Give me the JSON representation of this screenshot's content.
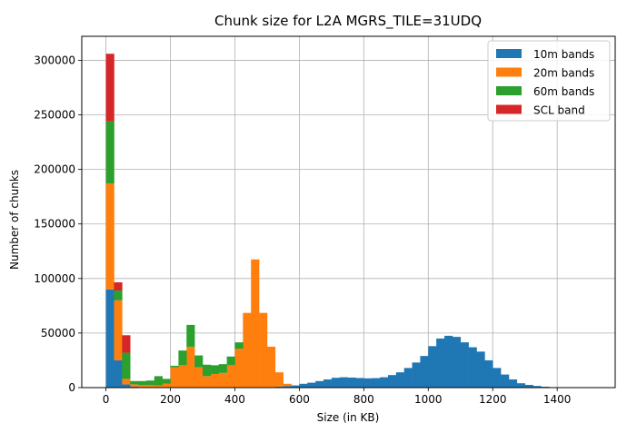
{
  "chart_data": {
    "type": "bar",
    "stacked": true,
    "histogram": true,
    "title": "Chunk size for L2A MGRS_TILE=31UDQ",
    "xlabel": "Size (in KB)",
    "ylabel": "Number of chunks",
    "xlim": [
      -75,
      1580
    ],
    "ylim": [
      0,
      322000
    ],
    "xticks": [
      0,
      200,
      400,
      600,
      800,
      1000,
      1200,
      1400
    ],
    "yticks": [
      0,
      50000,
      100000,
      150000,
      200000,
      250000,
      300000
    ],
    "grid": true,
    "legend_position": "top-right",
    "bin_width": 25,
    "bin_starts": [
      0,
      25,
      50,
      75,
      100,
      125,
      150,
      175,
      200,
      225,
      250,
      275,
      300,
      325,
      350,
      375,
      400,
      425,
      450,
      475,
      500,
      525,
      550,
      575,
      600,
      625,
      650,
      675,
      700,
      725,
      750,
      775,
      800,
      825,
      850,
      875,
      900,
      925,
      950,
      975,
      1000,
      1025,
      1050,
      1075,
      1100,
      1125,
      1150,
      1175,
      1200,
      1225,
      1250,
      1275,
      1300,
      1325,
      1350,
      1375,
      1400,
      1425,
      1450,
      1475,
      1500
    ],
    "series": [
      {
        "name": "10m bands",
        "color": "#1f77b4",
        "values": [
          90000,
          25000,
          3000,
          1000,
          500,
          500,
          500,
          500,
          500,
          500,
          500,
          500,
          500,
          500,
          500,
          500,
          500,
          500,
          500,
          500,
          500,
          1000,
          1500,
          2000,
          3500,
          4500,
          6000,
          7500,
          9000,
          9500,
          9200,
          8800,
          8500,
          8700,
          9500,
          11500,
          14000,
          18000,
          23000,
          29000,
          38000,
          45000,
          47500,
          46500,
          41500,
          37000,
          33000,
          25000,
          18000,
          12000,
          7500,
          4000,
          2500,
          1500,
          800,
          400,
          300,
          200,
          150,
          100,
          80
        ]
      },
      {
        "name": "20m bands",
        "color": "#ff7f0e",
        "values": [
          97000,
          55000,
          5000,
          2000,
          2000,
          2000,
          1500,
          3000,
          18000,
          20000,
          37000,
          18000,
          10000,
          12000,
          13000,
          20000,
          35000,
          68000,
          117000,
          68000,
          37000,
          13000,
          2000,
          0,
          0,
          0,
          0,
          0,
          0,
          0,
          0,
          0,
          0,
          0,
          0,
          0,
          0,
          0,
          0,
          0,
          0,
          0,
          0,
          0,
          0,
          0,
          0,
          0,
          0,
          0,
          0,
          0,
          0,
          0,
          0,
          0,
          0,
          0,
          0,
          0,
          0
        ]
      },
      {
        "name": "60m bands",
        "color": "#2ca02c",
        "values": [
          57000,
          9000,
          24000,
          3000,
          3500,
          4000,
          8500,
          4500,
          1500,
          13500,
          20000,
          11000,
          10500,
          8000,
          8000,
          8000,
          6000,
          0,
          0,
          0,
          0,
          0,
          0,
          0,
          0,
          0,
          0,
          0,
          0,
          0,
          0,
          0,
          0,
          0,
          0,
          0,
          0,
          0,
          0,
          0,
          0,
          0,
          0,
          0,
          0,
          0,
          0,
          0,
          0,
          0,
          0,
          0,
          0,
          0,
          0,
          0,
          0,
          0,
          0,
          0,
          0
        ]
      },
      {
        "name": "SCL band",
        "color": "#d62728",
        "values": [
          62000,
          7500,
          16000,
          0,
          0,
          0,
          0,
          0,
          0,
          0,
          0,
          0,
          0,
          0,
          0,
          0,
          0,
          0,
          0,
          0,
          0,
          0,
          0,
          0,
          0,
          0,
          0,
          0,
          0,
          0,
          0,
          0,
          0,
          0,
          0,
          0,
          0,
          0,
          0,
          0,
          0,
          0,
          0,
          0,
          0,
          0,
          0,
          0,
          0,
          0,
          0,
          0,
          0,
          0,
          0,
          0,
          0,
          0,
          0,
          0,
          0
        ]
      }
    ]
  }
}
